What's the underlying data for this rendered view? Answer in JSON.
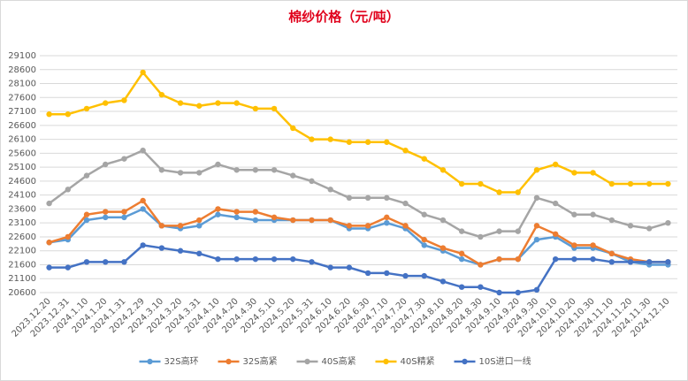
{
  "chart_data": {
    "type": "line",
    "title": "棉纱价格（元/吨）",
    "categories": [
      "2023.12.20",
      "2023.12.31",
      "2024.1.10",
      "2024.1.20",
      "2024.1.31",
      "2024.2.29",
      "2024.3.10",
      "2024.3.20",
      "2024.3.31",
      "2024.4.10",
      "2024.4.20",
      "2024.4.30",
      "2024.5.10",
      "2024.5.20",
      "2024.5.31",
      "2024.6.10",
      "2024.6.20",
      "2024.6.30",
      "2024.7.10",
      "2024.7.20",
      "2024.7.30",
      "2024.8.10",
      "2024.8.20",
      "2024.8.30",
      "2024.9.10",
      "2024.9.20",
      "2024.9.30",
      "2024.10.10",
      "2024.10.20",
      "2024.10.30",
      "2024.11.10",
      "2024.11.20",
      "2024.11.30",
      "2024.12.10"
    ],
    "series": [
      {
        "name": "32S高环",
        "color": "#5b9bd5",
        "values": [
          22400,
          22500,
          23200,
          23300,
          23300,
          23600,
          23000,
          22900,
          23000,
          23400,
          23300,
          23200,
          23200,
          23200,
          23200,
          23200,
          22900,
          22900,
          23100,
          22900,
          22300,
          22100,
          21800,
          21600,
          21800,
          21800,
          22500,
          22600,
          22200,
          22200,
          22000,
          21700,
          21600,
          21600
        ]
      },
      {
        "name": "32S高紧",
        "color": "#ed7d31",
        "values": [
          22400,
          22600,
          23400,
          23500,
          23500,
          23900,
          23000,
          23000,
          23200,
          23600,
          23500,
          23500,
          23300,
          23200,
          23200,
          23200,
          23000,
          23000,
          23300,
          23000,
          22500,
          22200,
          22000,
          21600,
          21800,
          21800,
          23000,
          22700,
          22300,
          22300,
          22000,
          21800,
          21700,
          21700
        ]
      },
      {
        "name": "40S高紧",
        "color": "#a5a5a5",
        "values": [
          23800,
          24300,
          24800,
          25200,
          25400,
          25700,
          25000,
          24900,
          24900,
          25200,
          25000,
          25000,
          25000,
          24800,
          24600,
          24300,
          24000,
          24000,
          24000,
          23800,
          23400,
          23200,
          22800,
          22600,
          22800,
          22800,
          24000,
          23800,
          23400,
          23400,
          23200,
          23000,
          22900,
          23100
        ]
      },
      {
        "name": "40S精紧",
        "color": "#ffc000",
        "values": [
          27000,
          27000,
          27200,
          27400,
          27500,
          28500,
          27700,
          27400,
          27300,
          27400,
          27400,
          27200,
          27200,
          26500,
          26100,
          26100,
          26000,
          26000,
          26000,
          25700,
          25400,
          25000,
          24500,
          24500,
          24200,
          24200,
          25000,
          25200,
          24900,
          24900,
          24500,
          24500,
          24500,
          24500
        ]
      },
      {
        "name": "10S进口一线",
        "color": "#4472c4",
        "values": [
          21500,
          21500,
          21700,
          21700,
          21700,
          22300,
          22200,
          22100,
          22000,
          21800,
          21800,
          21800,
          21800,
          21800,
          21700,
          21500,
          21500,
          21300,
          21300,
          21200,
          21200,
          21000,
          20800,
          20800,
          20600,
          20600,
          20700,
          21800,
          21800,
          21800,
          21700,
          21700,
          21700,
          21700
        ]
      }
    ],
    "ylim": [
      20600,
      29100
    ],
    "yticks": [
      20600,
      21100,
      21600,
      22100,
      22600,
      23100,
      23600,
      24100,
      24600,
      25100,
      25600,
      26100,
      26600,
      27100,
      27600,
      28100,
      28600,
      29100
    ],
    "grid": true,
    "legend": "bottom"
  }
}
